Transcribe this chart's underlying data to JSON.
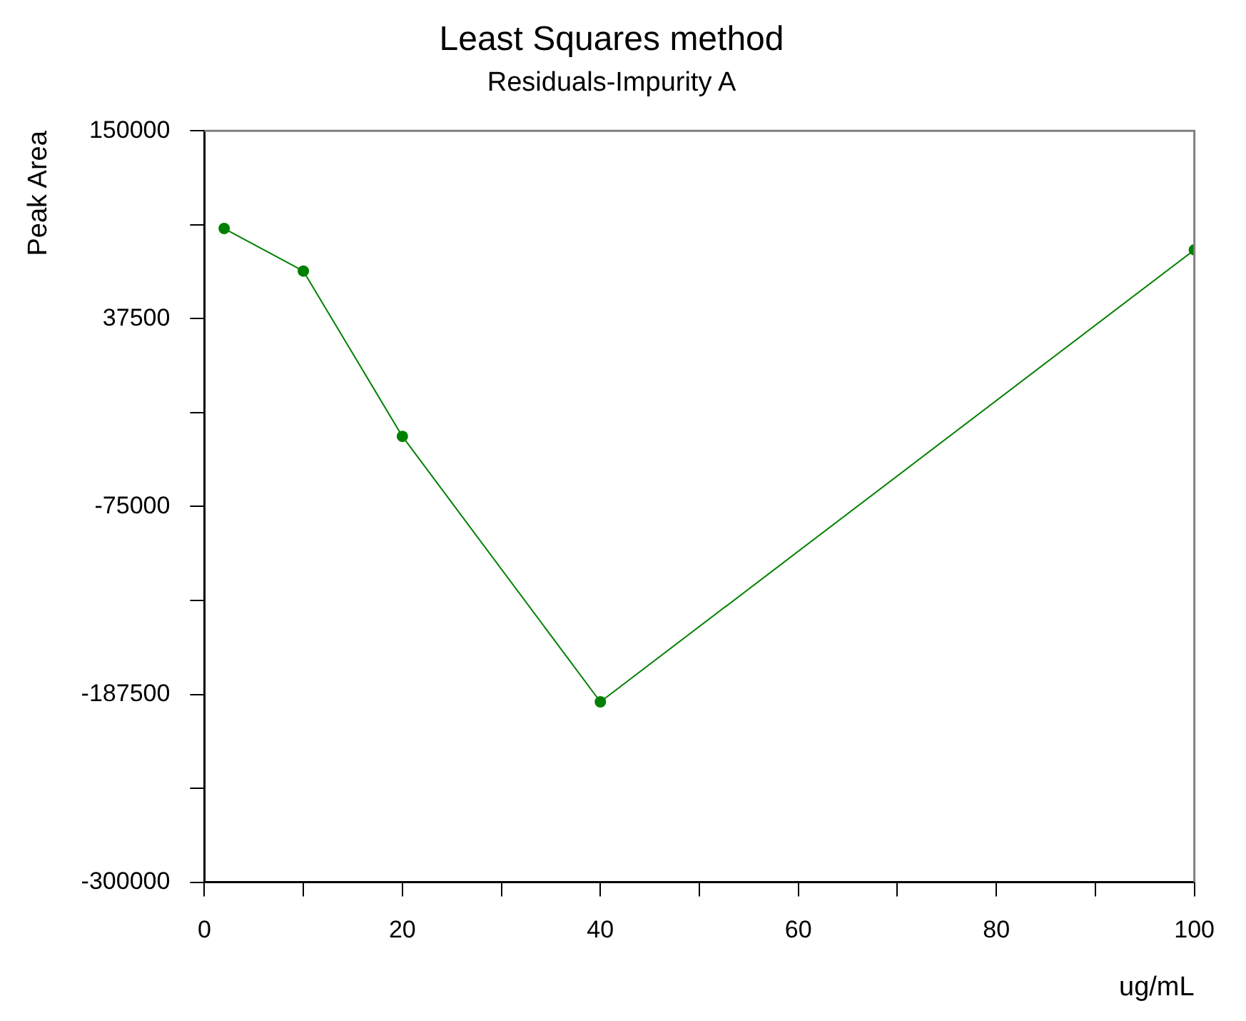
{
  "chart_data": {
    "type": "line",
    "title": "Least Squares method",
    "subtitle": "Residuals-Impurity A",
    "xlabel": "ug/mL",
    "ylabel": "Peak Area",
    "x": [
      2,
      10,
      20,
      40,
      100
    ],
    "series": [
      {
        "color": "#008000",
        "values": [
          91500,
          66000,
          -33000,
          -192000,
          78700
        ]
      }
    ],
    "xlim": [
      0,
      100
    ],
    "xticks": [
      0,
      {
        "value": 10,
        "label": null
      },
      20,
      {
        "value": 30,
        "label": null
      },
      40,
      {
        "value": 50,
        "label": null
      },
      60,
      {
        "value": 70,
        "label": null
      },
      80,
      {
        "value": 90,
        "label": null
      },
      100
    ],
    "ylim": [
      -300000,
      150000
    ],
    "yticks": [
      -300000,
      {
        "value": -243750,
        "label": null
      },
      -187500,
      {
        "value": -131250,
        "label": null
      },
      -75000,
      {
        "value": -18750,
        "label": null
      },
      37500,
      {
        "value": 93750,
        "label": null
      },
      150000
    ],
    "grid": false,
    "legend": false,
    "marker": "circle",
    "line_style": "solid"
  }
}
